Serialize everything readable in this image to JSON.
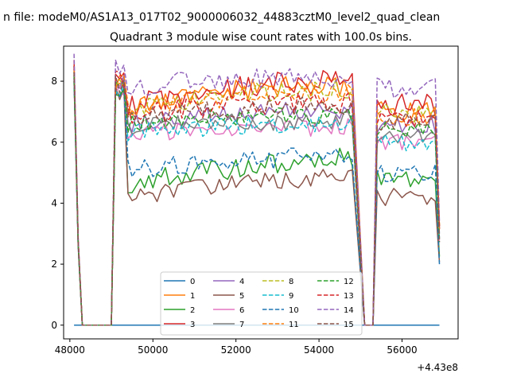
{
  "chart_data": {
    "type": "line",
    "suptitle": "n file: modeM0/AS1A13_017T02_9000006032_44883cztM0_level2_quad_clean",
    "title": "Quadrant 3 module wise count rates with 100.0s bins.",
    "xlabel": "",
    "ylabel": "",
    "x_offset_label": "+4.43e8",
    "xlim": [
      47850,
      57350
    ],
    "ylim": [
      -0.45,
      9.15
    ],
    "x_ticks": [
      48000,
      50000,
      52000,
      54000,
      56000
    ],
    "y_ticks": [
      0,
      2,
      4,
      6,
      8
    ],
    "grid": false,
    "legend": {
      "position": "lower center",
      "columns": 4
    },
    "segments": {
      "seg1": {
        "x_start": 48100,
        "x_end": 48300,
        "step": 100
      },
      "gap1": {
        "x_start": 48400,
        "x_end": 49000,
        "step": 100
      },
      "seg2": {
        "x_start": 49100,
        "x_end": 54800,
        "step": 100
      },
      "gap2": {
        "x_start": 55100,
        "x_end": 55200,
        "step": 100
      },
      "seg3": {
        "x_start": 55300,
        "x_end": 56900,
        "step": 100
      }
    },
    "series": [
      {
        "name": "0",
        "color": "#1f77b4",
        "dash": "solid",
        "start": 0.0,
        "mid": 0.0,
        "rise": 0.0,
        "end": 0.0,
        "seg3": 0.0,
        "noise": 0.0
      },
      {
        "name": "1",
        "color": "#ff7f0e",
        "dash": "solid",
        "start": 8.5,
        "mid": 7.0,
        "rise": 7.6,
        "end": 7.8,
        "seg3": 7.0,
        "noise": 0.35
      },
      {
        "name": "2",
        "color": "#2ca02c",
        "dash": "solid",
        "start": 8.3,
        "mid": 4.6,
        "rise": 4.8,
        "end": 5.5,
        "seg3": 4.8,
        "noise": 0.35
      },
      {
        "name": "3",
        "color": "#d62728",
        "dash": "solid",
        "start": 8.7,
        "mid": 7.2,
        "rise": 7.6,
        "end": 8.0,
        "seg3": 7.2,
        "noise": 0.4
      },
      {
        "name": "4",
        "color": "#9467bd",
        "dash": "solid",
        "start": 8.4,
        "mid": 6.6,
        "rise": 6.9,
        "end": 7.0,
        "seg3": 6.6,
        "noise": 0.3
      },
      {
        "name": "5",
        "color": "#8c564b",
        "dash": "solid",
        "start": 8.0,
        "mid": 4.2,
        "rise": 4.4,
        "end": 4.9,
        "seg3": 4.2,
        "noise": 0.3
      },
      {
        "name": "6",
        "color": "#e377c2",
        "dash": "solid",
        "start": 8.2,
        "mid": 6.3,
        "rise": 6.4,
        "end": 6.5,
        "seg3": 6.0,
        "noise": 0.3
      },
      {
        "name": "7",
        "color": "#7f7f7f",
        "dash": "solid",
        "start": 8.1,
        "mid": 6.5,
        "rise": 6.6,
        "end": 6.7,
        "seg3": 6.2,
        "noise": 0.3
      },
      {
        "name": "8",
        "color": "#bcbd22",
        "dash": "dashed",
        "start": 8.5,
        "mid": 7.1,
        "rise": 7.5,
        "end": 7.7,
        "seg3": 7.0,
        "noise": 0.35
      },
      {
        "name": "9",
        "color": "#17becf",
        "dash": "dashed",
        "start": 8.1,
        "mid": 6.3,
        "rise": 6.5,
        "end": 6.6,
        "seg3": 6.0,
        "noise": 0.3
      },
      {
        "name": "10",
        "color": "#1f77b4",
        "dash": "dashed",
        "start": 8.0,
        "mid": 5.1,
        "rise": 5.0,
        "end": 5.7,
        "seg3": 5.0,
        "noise": 0.35
      },
      {
        "name": "11",
        "color": "#ff7f0e",
        "dash": "dashed",
        "start": 8.4,
        "mid": 7.0,
        "rise": 7.4,
        "end": 7.6,
        "seg3": 6.9,
        "noise": 0.35
      },
      {
        "name": "12",
        "color": "#2ca02c",
        "dash": "dashed",
        "start": 8.2,
        "mid": 6.6,
        "rise": 6.8,
        "end": 6.9,
        "seg3": 6.4,
        "noise": 0.3
      },
      {
        "name": "13",
        "color": "#d62728",
        "dash": "dashed",
        "start": 8.5,
        "mid": 6.9,
        "rise": 7.1,
        "end": 7.3,
        "seg3": 6.8,
        "noise": 0.35
      },
      {
        "name": "14",
        "color": "#9467bd",
        "dash": "dashed",
        "start": 8.9,
        "mid": 7.8,
        "rise": 8.1,
        "end": 8.1,
        "seg3": 7.8,
        "noise": 0.35
      },
      {
        "name": "15",
        "color": "#8c564b",
        "dash": "dashed",
        "start": 8.3,
        "mid": 6.8,
        "rise": 7.0,
        "end": 7.2,
        "seg3": 6.7,
        "noise": 0.3
      }
    ]
  }
}
